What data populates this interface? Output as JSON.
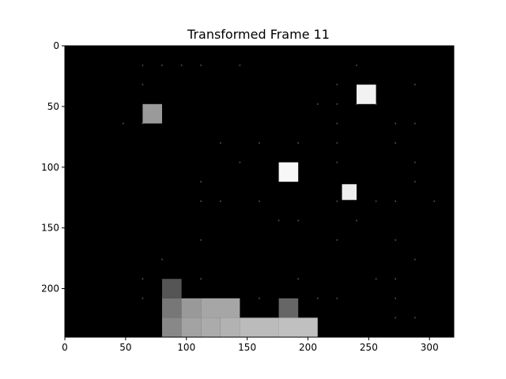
{
  "title": "Transformed Frame 11",
  "chart_data": {
    "type": "heatmap",
    "title": "Transformed Frame 11",
    "xlim": [
      0,
      320
    ],
    "ylim": [
      240,
      0
    ],
    "x_ticks": [
      0,
      50,
      100,
      150,
      200,
      250,
      300
    ],
    "y_ticks": [
      0,
      50,
      100,
      150,
      200
    ],
    "background": "#000000",
    "blocks": [
      {
        "x": 64,
        "y": 48,
        "w": 16,
        "h": 16,
        "color": "#9a9a9a"
      },
      {
        "x": 240,
        "y": 32,
        "w": 16,
        "h": 16,
        "color": "#f2f2f2"
      },
      {
        "x": 176,
        "y": 96,
        "w": 16,
        "h": 16,
        "color": "#f7f7f7"
      },
      {
        "x": 228,
        "y": 114,
        "w": 12,
        "h": 13,
        "color": "#eeeeee"
      },
      {
        "x": 80,
        "y": 192,
        "w": 16,
        "h": 16,
        "color": "#555555"
      },
      {
        "x": 80,
        "y": 208,
        "w": 16,
        "h": 16,
        "color": "#777777"
      },
      {
        "x": 80,
        "y": 224,
        "w": 16,
        "h": 16,
        "color": "#888888"
      },
      {
        "x": 96,
        "y": 208,
        "w": 16,
        "h": 16,
        "color": "#999999"
      },
      {
        "x": 96,
        "y": 224,
        "w": 16,
        "h": 16,
        "color": "#a3a3a3"
      },
      {
        "x": 112,
        "y": 208,
        "w": 32,
        "h": 16,
        "color": "#a6a6a6"
      },
      {
        "x": 112,
        "y": 224,
        "w": 16,
        "h": 16,
        "color": "#ababab"
      },
      {
        "x": 128,
        "y": 224,
        "w": 16,
        "h": 16,
        "color": "#b2b2b2"
      },
      {
        "x": 144,
        "y": 224,
        "w": 32,
        "h": 16,
        "color": "#bbbbbb"
      },
      {
        "x": 176,
        "y": 208,
        "w": 16,
        "h": 16,
        "color": "#666666"
      },
      {
        "x": 176,
        "y": 224,
        "w": 32,
        "h": 16,
        "color": "#c0c0c0"
      }
    ],
    "dots": [
      [
        64,
        16
      ],
      [
        80,
        16
      ],
      [
        96,
        16
      ],
      [
        112,
        16
      ],
      [
        144,
        16
      ],
      [
        240,
        16
      ],
      [
        64,
        32
      ],
      [
        224,
        32
      ],
      [
        288,
        32
      ],
      [
        208,
        48
      ],
      [
        224,
        48
      ],
      [
        240,
        48
      ],
      [
        256,
        48
      ],
      [
        48,
        64
      ],
      [
        64,
        64
      ],
      [
        224,
        64
      ],
      [
        272,
        64
      ],
      [
        288,
        64
      ],
      [
        128,
        80
      ],
      [
        160,
        80
      ],
      [
        192,
        80
      ],
      [
        224,
        80
      ],
      [
        272,
        80
      ],
      [
        144,
        96
      ],
      [
        224,
        96
      ],
      [
        288,
        96
      ],
      [
        112,
        112
      ],
      [
        288,
        112
      ],
      [
        112,
        128
      ],
      [
        128,
        128
      ],
      [
        160,
        128
      ],
      [
        224,
        128
      ],
      [
        256,
        128
      ],
      [
        272,
        128
      ],
      [
        304,
        128
      ],
      [
        176,
        144
      ],
      [
        192,
        144
      ],
      [
        240,
        144
      ],
      [
        112,
        160
      ],
      [
        224,
        160
      ],
      [
        272,
        160
      ],
      [
        80,
        176
      ],
      [
        288,
        176
      ],
      [
        64,
        192
      ],
      [
        112,
        192
      ],
      [
        192,
        192
      ],
      [
        256,
        192
      ],
      [
        272,
        192
      ],
      [
        64,
        208
      ],
      [
        160,
        208
      ],
      [
        208,
        208
      ],
      [
        224,
        208
      ],
      [
        272,
        208
      ],
      [
        272,
        224
      ],
      [
        288,
        224
      ]
    ]
  }
}
